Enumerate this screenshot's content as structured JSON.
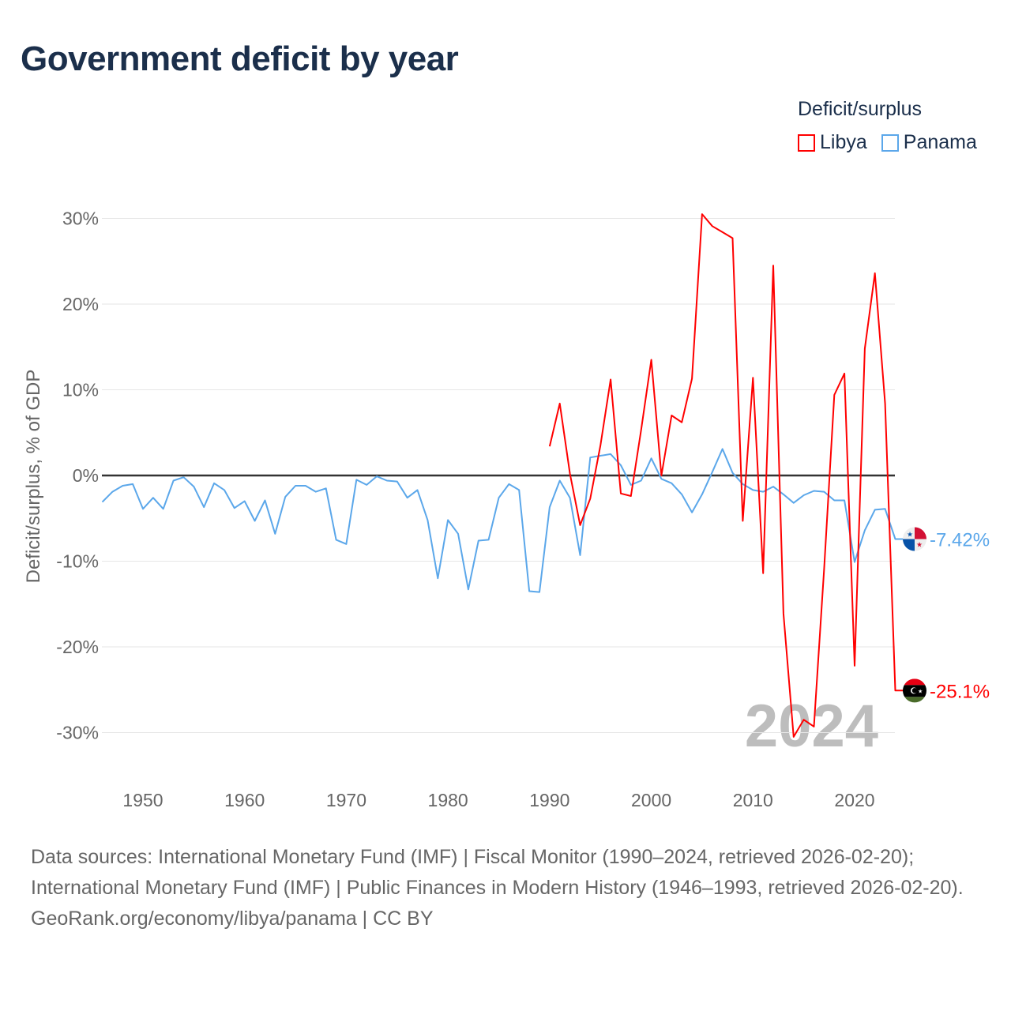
{
  "title": "Government deficit by year",
  "legend": {
    "title": "Deficit/surplus",
    "items": [
      {
        "name": "Libya",
        "color": "#ff0000"
      },
      {
        "name": "Panama",
        "color": "#5ba7ea"
      }
    ]
  },
  "year_watermark": "2024",
  "footer": {
    "sources": "Data sources: International Monetary Fund (IMF) | Fiscal Monitor (1990–2024, retrieved 2026-02-20); International Monetary Fund (IMF) | Public Finances in Modern History (1946–1993, retrieved 2026-02-20).",
    "credit": "GeoRank.org/economy/libya/panama | CC BY"
  },
  "chart_data": {
    "type": "line",
    "title": "Government deficit by year",
    "xlabel": "",
    "ylabel": "Deficit/surplus, % of GDP",
    "xlim": [
      1946,
      2024
    ],
    "ylim": [
      -35,
      33
    ],
    "x_ticks": [
      1950,
      1960,
      1970,
      1980,
      1990,
      2000,
      2010,
      2020
    ],
    "y_ticks": [
      30,
      20,
      10,
      0,
      -10,
      -20,
      -30
    ],
    "y_tick_labels": [
      "30%",
      "20%",
      "10%",
      "0%",
      "-10%",
      "-20%",
      "-30%"
    ],
    "grid": true,
    "legend_position": "top-right",
    "series": [
      {
        "name": "Libya",
        "color": "#ff0000",
        "start_year": 1990,
        "end_label": "-25.1%",
        "values": [
          3.4,
          8.4,
          0.2,
          -5.8,
          -2.7,
          3.5,
          11.2,
          -2.1,
          -2.4,
          5.3,
          13.5,
          0.0,
          7.0,
          6.2,
          11.3,
          30.5,
          29.1,
          28.4,
          27.7,
          -5.3,
          11.4,
          -11.4,
          24.5,
          -16.1,
          -30.5,
          -28.5,
          -29.3,
          -10.9,
          9.4,
          11.9,
          -22.2,
          14.8,
          23.6,
          8.4,
          -25.1
        ]
      },
      {
        "name": "Panama",
        "color": "#5ba7ea",
        "start_year": 1946,
        "end_label": "-7.42%",
        "values": [
          -3.1,
          -1.9,
          -1.2,
          -1.0,
          -3.9,
          -2.6,
          -3.9,
          -0.6,
          -0.2,
          -1.3,
          -3.7,
          -0.9,
          -1.7,
          -3.8,
          -3.0,
          -5.3,
          -2.9,
          -6.8,
          -2.5,
          -1.2,
          -1.2,
          -1.9,
          -1.5,
          -7.5,
          -8.0,
          -0.5,
          -1.1,
          -0.1,
          -0.6,
          -0.7,
          -2.6,
          -1.7,
          -5.2,
          -12.0,
          -5.2,
          -6.8,
          -13.3,
          -7.6,
          -7.5,
          -2.6,
          -1.0,
          -1.7,
          -13.5,
          -13.6,
          -3.7,
          -0.6,
          -2.6,
          -9.3,
          2.1,
          2.3,
          2.5,
          1.2,
          -1.1,
          -0.6,
          2.0,
          -0.4,
          -0.9,
          -2.2,
          -4.3,
          -2.2,
          0.4,
          3.1,
          0.3,
          -1.0,
          -1.7,
          -1.9,
          -1.3,
          -2.2,
          -3.2,
          -2.3,
          -1.8,
          -1.9,
          -2.9,
          -2.9,
          -10.1,
          -6.4,
          -4.0,
          -3.9,
          -7.42
        ]
      }
    ]
  }
}
